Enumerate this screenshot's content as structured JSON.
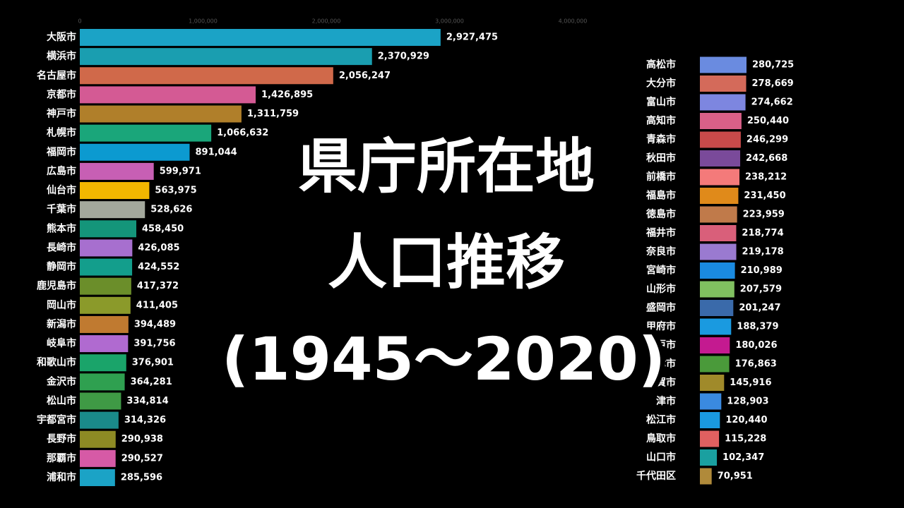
{
  "title": [
    "県庁所在地",
    "人口推移",
    "(1945～2020)"
  ],
  "chart_data": [
    {
      "type": "bar",
      "orientation": "horizontal",
      "categories": [
        "大阪市",
        "横浜市",
        "名古屋市",
        "京都市",
        "神戸市",
        "札幌市",
        "福岡市",
        "広島市",
        "仙台市",
        "千葉市",
        "熊本市",
        "長崎市",
        "静岡市",
        "鹿児島市",
        "岡山市",
        "新潟市",
        "岐阜市",
        "和歌山市",
        "金沢市",
        "松山市",
        "宇都宮市",
        "長野市",
        "那覇市",
        "浦和市"
      ],
      "values": [
        2927475,
        2370929,
        2056247,
        1426895,
        1311759,
        1066632,
        891044,
        599971,
        563975,
        528626,
        458450,
        426085,
        424552,
        417372,
        411405,
        394489,
        391756,
        376901,
        364281,
        334814,
        314326,
        290938,
        290527,
        285596
      ],
      "value_labels": [
        "2,927,475",
        "2,370,929",
        "2,056,247",
        "1,426,895",
        "1,311,759",
        "1,066,632",
        "891,044",
        "599,971",
        "563,975",
        "528,626",
        "458,450",
        "426,085",
        "424,552",
        "417,372",
        "411,405",
        "394,489",
        "391,756",
        "376,901",
        "364,281",
        "334,814",
        "314,326",
        "290,938",
        "290,527",
        "285,596"
      ],
      "colors": [
        "#1ba3c6",
        "#1a9eb0",
        "#d0694a",
        "#d45a94",
        "#b07f2a",
        "#1aa67a",
        "#0c9ad0",
        "#c75fb4",
        "#f2b700",
        "#a3a89c",
        "#14957a",
        "#a76fcf",
        "#139e8c",
        "#6b8e2a",
        "#8b9a2a",
        "#c07a30",
        "#b06ad0",
        "#1aa46a",
        "#2fa050",
        "#3f9a45",
        "#1a8a8a",
        "#8d8a24",
        "#d65aa6",
        "#1ba3c6"
      ],
      "xlim": [
        0,
        4000000
      ],
      "xticks": [
        0,
        {
          "value": 1000000,
          "label": "1,000,000"
        },
        {
          "value": 2000000,
          "label": "2,000,000"
        },
        {
          "value": 3000000,
          "label": "3,000,000"
        },
        {
          "value": 4000000,
          "label": "4,000,000"
        }
      ]
    },
    {
      "type": "bar",
      "orientation": "horizontal",
      "categories": [
        "高松市",
        "大分市",
        "富山市",
        "高知市",
        "青森市",
        "秋田市",
        "前橋市",
        "福島市",
        "徳島市",
        "福井市",
        "奈良市",
        "宮崎市",
        "山形市",
        "盛岡市",
        "甲府市",
        "水戸市",
        "大津市",
        "佐賀市",
        "津市",
        "松江市",
        "鳥取市",
        "山口市",
        "千代田区"
      ],
      "values": [
        280725,
        278669,
        274662,
        250440,
        246299,
        242668,
        238212,
        231450,
        223959,
        218774,
        219178,
        210989,
        207579,
        201247,
        188379,
        180026,
        176863,
        145916,
        128903,
        120440,
        115228,
        102347,
        70951
      ],
      "value_labels": [
        "280,725",
        "278,669",
        "274,662",
        "250,440",
        "246,299",
        "242,668",
        "238,212",
        "231,450",
        "223,959",
        "218,774",
        "219,178",
        "210,989",
        "207,579",
        "201,247",
        "188,379",
        "180,026",
        "176,863",
        "145,916",
        "128,903",
        "120,440",
        "115,228",
        "102,347",
        "70,951"
      ],
      "colors": [
        "#6a8be0",
        "#d46a5a",
        "#7d86e0",
        "#d96088",
        "#c84a4a",
        "#7a4a9a",
        "#f47a7a",
        "#e08a1a",
        "#c07a4a",
        "#d95f7a",
        "#9a7ad0",
        "#1a8ae0",
        "#80c060",
        "#3a6aaa",
        "#1a9ae0",
        "#c41a90",
        "#4a9a3a",
        "#a08a2a",
        "#3a8ae0",
        "#1a9ae0",
        "#e06060",
        "#1aa0a0",
        "#b08a3a"
      ]
    }
  ]
}
